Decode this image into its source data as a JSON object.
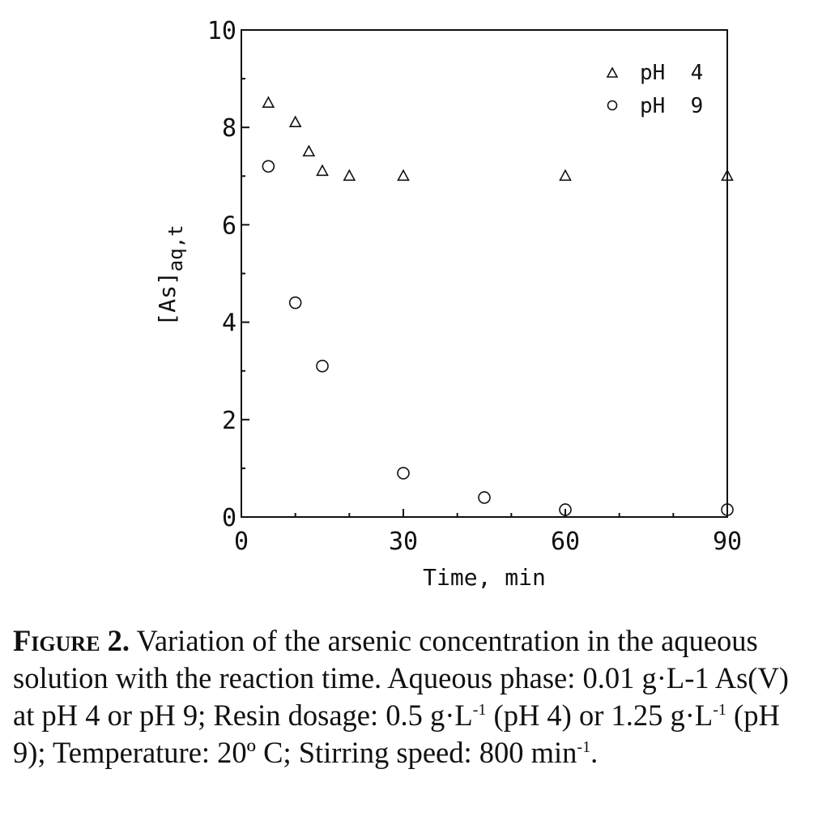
{
  "chart_data": {
    "type": "scatter",
    "xlabel": "Time, min",
    "ylabel_main": "[As]",
    "ylabel_sub": "aq,t",
    "xlim": [
      0,
      90
    ],
    "ylim": [
      0,
      10
    ],
    "x_ticks": [
      "0",
      "30",
      "60",
      "90"
    ],
    "y_ticks": [
      "0",
      "2",
      "4",
      "6",
      "8",
      "10"
    ],
    "legend_position": "top-right",
    "series": [
      {
        "name": "pH  4",
        "marker": "triangle",
        "x": [
          5,
          10,
          12.5,
          15,
          20,
          30,
          60,
          90
        ],
        "y": [
          8.5,
          8.1,
          7.5,
          7.1,
          7.0,
          7.0,
          7.0,
          7.0
        ]
      },
      {
        "name": "pH  9",
        "marker": "circle",
        "x": [
          5,
          10,
          15,
          30,
          45,
          60,
          90
        ],
        "y": [
          7.2,
          4.4,
          3.1,
          0.9,
          0.4,
          0.15,
          0.15
        ]
      }
    ]
  },
  "caption": {
    "label": "Figure 2.",
    "p1": " Variation of the arsenic concentration in the aqueous solution with the reaction time. Aqueous phase: 0.01 g·L-1 As(V) at pH 4 or pH 9; Resin dosage: 0.5 g·L",
    "sup1": "-1",
    "p2": " (pH 4) or 1.25 g·L",
    "sup2": "-1",
    "p3": " (pH 9); Temperature: 20º C; Stirring speed: 800 min",
    "sup3": "-1",
    "p4": "."
  }
}
